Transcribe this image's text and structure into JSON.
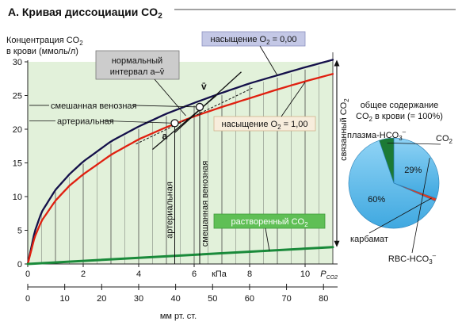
{
  "header": {
    "title": "А. Кривая диссоциации CO",
    "title_sub": "2"
  },
  "chart_data": [
    {
      "type": "line",
      "x_unit": "кПа",
      "xlim": [
        0,
        11
      ],
      "ylim": [
        0,
        30
      ],
      "xticks": [
        0,
        2,
        4,
        6,
        8,
        10
      ],
      "yticks": [
        0,
        5,
        10,
        15,
        20,
        25,
        30
      ],
      "ylabel_line1": "Концентрация CO",
      "ylabel_line1_sub": "2",
      "ylabel_line2": "в крови (ммоль/л)",
      "xlabel_main": "P",
      "xlabel_sub": "CO2",
      "secondary_axis": {
        "label": "мм рт. ст.",
        "ticks": [
          0,
          10,
          20,
          30,
          40,
          50,
          60,
          70,
          80
        ],
        "kpa_per_mmhg": 0.1333
      },
      "series": [
        {
          "name": "насыщение O2 = 0,00",
          "name_main": "насыщение O",
          "name_sub": "2",
          "name_tail": " = 0,00",
          "color": "#14104a",
          "x": [
            0,
            0.25,
            0.5,
            1,
            1.5,
            2,
            3,
            4,
            5,
            6,
            7,
            8,
            9,
            10,
            11
          ],
          "y": [
            0,
            4.8,
            7.7,
            11.0,
            13.3,
            15.2,
            18.2,
            20.4,
            22.3,
            23.9,
            25.4,
            26.8,
            28.0,
            29.2,
            30.3
          ]
        },
        {
          "name": "насыщение O2 = 1,00",
          "name_main": "насыщение O",
          "name_sub": "2",
          "name_tail": " = 1,00",
          "color": "#e02010",
          "x": [
            0,
            0.25,
            0.5,
            1,
            1.5,
            2,
            3,
            4,
            5,
            6,
            7,
            8,
            9,
            10,
            11
          ],
          "y": [
            0,
            4.0,
            6.4,
            9.4,
            11.6,
            13.3,
            16.2,
            18.5,
            20.3,
            21.9,
            23.3,
            24.6,
            25.9,
            27.1,
            28.2
          ]
        },
        {
          "name": "растворенный CO2",
          "name_main": "растворенный CO",
          "name_sub": "2",
          "name_tail": "",
          "color": "#1a8a3a",
          "x": [
            0,
            11
          ],
          "y": [
            0,
            2.5
          ]
        }
      ],
      "points": [
        {
          "name": "a",
          "x": 5.3,
          "y": 20.9
        },
        {
          "name": "v̄",
          "x": 6.2,
          "y": 23.3
        }
      ],
      "bound_range": {
        "label_main": "связанный CO",
        "label_sub": "2",
        "x": 11,
        "y_from": 2.5,
        "y_to": 30.3
      },
      "annotations": {
        "normal_interval_line1": "нормальный",
        "normal_interval_line2": "интервал a–v̄",
        "mixed_venous": "смешанная венозная",
        "arterial": "артериальная",
        "arterial_vertical": "артериальная",
        "mixed_venous_vertical": "смешанная венозная",
        "point_a": "a",
        "point_v": "v̄"
      }
    },
    {
      "type": "pie",
      "title_line1": "общее содержание",
      "title_line2_main": "CO",
      "title_line2_sub": "2",
      "title_line2_tail": " в крови (= 100%)",
      "slices": [
        {
          "name": "плазма-HCO3−",
          "label_main": "плазма-HCO",
          "label_sub": "3",
          "label_sup": "–",
          "value": 60,
          "value_label": "60%",
          "color": "#4fb6ea"
        },
        {
          "name": "CO2",
          "label_main": "CO",
          "label_sub": "2",
          "label_sup": "",
          "value": 5,
          "value_label": "",
          "color": "#1c7a35"
        },
        {
          "name": "RBC-HCO3−",
          "label_main": "RBC-HCO",
          "label_sub": "3",
          "label_sup": "–",
          "value": 29,
          "value_label": "29%",
          "color": "#4fb6ea"
        },
        {
          "name": "карбамат",
          "label_main": "карбамат",
          "label_sub": "",
          "label_sup": "",
          "value": 1,
          "value_label": "",
          "color": "#e03a20"
        }
      ]
    }
  ]
}
